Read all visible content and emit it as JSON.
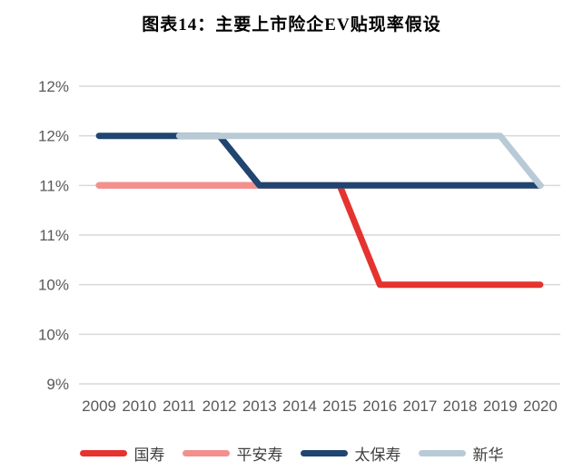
{
  "title": "图表14：主要上市险企EV贴现率假设",
  "chart_data": {
    "type": "line",
    "title": "图表14：主要上市险企EV贴现率假设",
    "x": [
      "2009",
      "2010",
      "2011",
      "2012",
      "2013",
      "2014",
      "2015",
      "2016",
      "2017",
      "2018",
      "2019",
      "2020"
    ],
    "y_axis": {
      "min": 9,
      "max": 12,
      "step": 0.5,
      "unit": "%",
      "tick_labels_top_to_bottom": [
        "12%",
        "12%",
        "11%",
        "11%",
        "10%",
        "10%",
        "9%"
      ]
    },
    "grid": "horizontal",
    "legend_position": "bottom",
    "series": [
      {
        "id": "guoshou",
        "name": "国寿",
        "color": "#e5332f",
        "values": [
          11,
          11,
          11,
          11,
          11,
          11,
          11,
          10,
          10,
          10,
          10,
          10
        ]
      },
      {
        "id": "pingan-life",
        "name": "平安寿",
        "color": "#f2908e",
        "values": [
          11,
          11,
          11,
          11,
          11,
          11,
          11,
          11,
          11,
          11,
          11,
          11
        ]
      },
      {
        "id": "cpic-life",
        "name": "太保寿",
        "color": "#1f4570",
        "values": [
          11.5,
          11.5,
          11.5,
          11.5,
          11,
          11,
          11,
          11,
          11,
          11,
          11,
          11
        ]
      },
      {
        "id": "nci",
        "name": "新华",
        "color": "#b8cad6",
        "values": [
          null,
          null,
          11.5,
          11.5,
          11.5,
          11.5,
          11.5,
          11.5,
          11.5,
          11.5,
          11.5,
          11
        ]
      }
    ],
    "colors": {
      "gridline": "#d9d9d9",
      "axis_text": "#595959",
      "legend_text": "#3f3f3f"
    }
  }
}
